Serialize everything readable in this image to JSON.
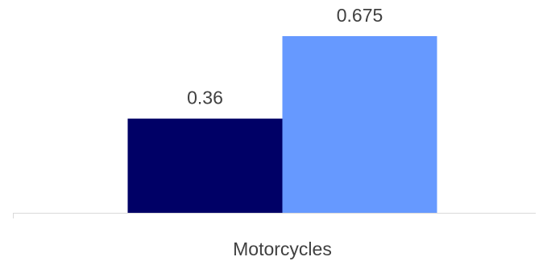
{
  "chart_data": {
    "type": "bar",
    "categories": [
      "Motorcycles"
    ],
    "series": [
      {
        "values": [
          0.36
        ],
        "color": "#000066"
      },
      {
        "values": [
          0.675
        ],
        "color": "#6699ff"
      }
    ],
    "data_labels": [
      "0.36",
      "0.675"
    ],
    "ylim": [
      0,
      0.75
    ],
    "grid": false,
    "legend": "none"
  }
}
